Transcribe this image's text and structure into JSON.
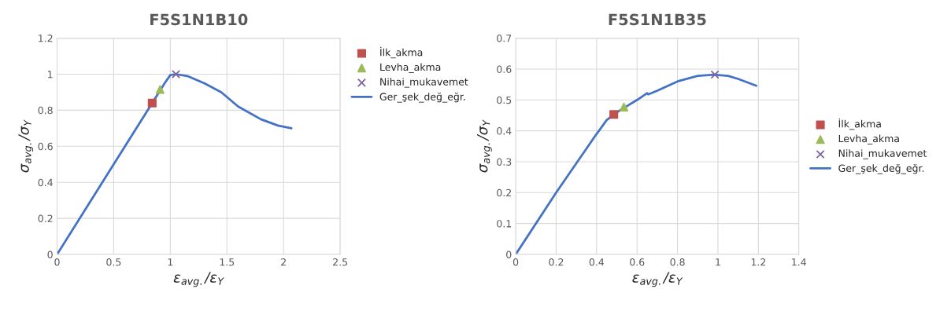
{
  "chart_data": [
    {
      "type": "line",
      "title": "F5S1N1B10",
      "xlabel": "ε$_{avg.}$/ε$_{Y}$",
      "ylabel": "σ$_{avg.}$/σ$_{Y}$",
      "xlim": [
        0,
        2.5
      ],
      "xticks": [
        0,
        0.5,
        1,
        1.5,
        2,
        2.5
      ],
      "ylim": [
        0,
        1.2
      ],
      "yticks": [
        0,
        0.2,
        0.4,
        0.6,
        0.8,
        1,
        1.2
      ],
      "grid": true,
      "legend": "top right",
      "series": [
        {
          "name": "İlk_akma",
          "type": "scatter",
          "marker": "square",
          "color": "#c0504d",
          "x": [
            0.84
          ],
          "values": [
            0.84
          ]
        },
        {
          "name": "Levha_akma",
          "type": "scatter",
          "marker": "triangle",
          "color": "#9bbb59",
          "x": [
            0.91
          ],
          "values": [
            0.915
          ]
        },
        {
          "name": "Nihai_mukavemet",
          "type": "scatter",
          "marker": "cross",
          "color": "#8064a2",
          "x": [
            1.05
          ],
          "values": [
            1.0
          ]
        },
        {
          "name": "Ger_şek_değ_eğr.",
          "color": "#4472c4",
          "x": [
            0,
            0.5,
            0.84,
            0.95,
            1.0,
            1.05,
            1.15,
            1.3,
            1.45,
            1.6,
            1.8,
            1.95,
            2.07
          ],
          "values": [
            0,
            0.5,
            0.84,
            0.95,
            0.995,
            1.0,
            0.99,
            0.95,
            0.9,
            0.82,
            0.75,
            0.715,
            0.7
          ]
        }
      ]
    },
    {
      "type": "line",
      "title": "F5S1N1B35",
      "xlabel": "ε$_{avg.}$/ε$_{Y}$",
      "ylabel": "σ$_{avg.}$/σ$_{Y}$",
      "xlim": [
        0,
        1.4
      ],
      "xticks": [
        0,
        0.2,
        0.4,
        0.6,
        0.8,
        1,
        1.2,
        1.4
      ],
      "ylim": [
        0,
        0.7
      ],
      "yticks": [
        0,
        0.1,
        0.2,
        0.3,
        0.4,
        0.5,
        0.6,
        0.7
      ],
      "grid": true,
      "legend": "right",
      "series": [
        {
          "name": "İlk_akma",
          "type": "scatter",
          "marker": "square",
          "color": "#c0504d",
          "x": [
            0.485
          ],
          "values": [
            0.453
          ]
        },
        {
          "name": "Levha_akma",
          "type": "scatter",
          "marker": "triangle",
          "color": "#9bbb59",
          "x": [
            0.535
          ],
          "values": [
            0.477
          ]
        },
        {
          "name": "Nihai_mukavemet",
          "type": "scatter",
          "marker": "cross",
          "color": "#8064a2",
          "x": [
            0.985
          ],
          "values": [
            0.582
          ]
        },
        {
          "name": "Ger_şek_değ_eğr.",
          "color": "#4472c4",
          "x": [
            0,
            0.2,
            0.4,
            0.45,
            0.5,
            0.55,
            0.6,
            0.65,
            0.655,
            0.7,
            0.8,
            0.9,
            0.98,
            1.05,
            1.1,
            1.19
          ],
          "values": [
            0,
            0.2,
            0.39,
            0.435,
            0.46,
            0.48,
            0.5,
            0.522,
            0.518,
            0.53,
            0.56,
            0.578,
            0.582,
            0.578,
            0.568,
            0.546
          ]
        }
      ]
    }
  ]
}
